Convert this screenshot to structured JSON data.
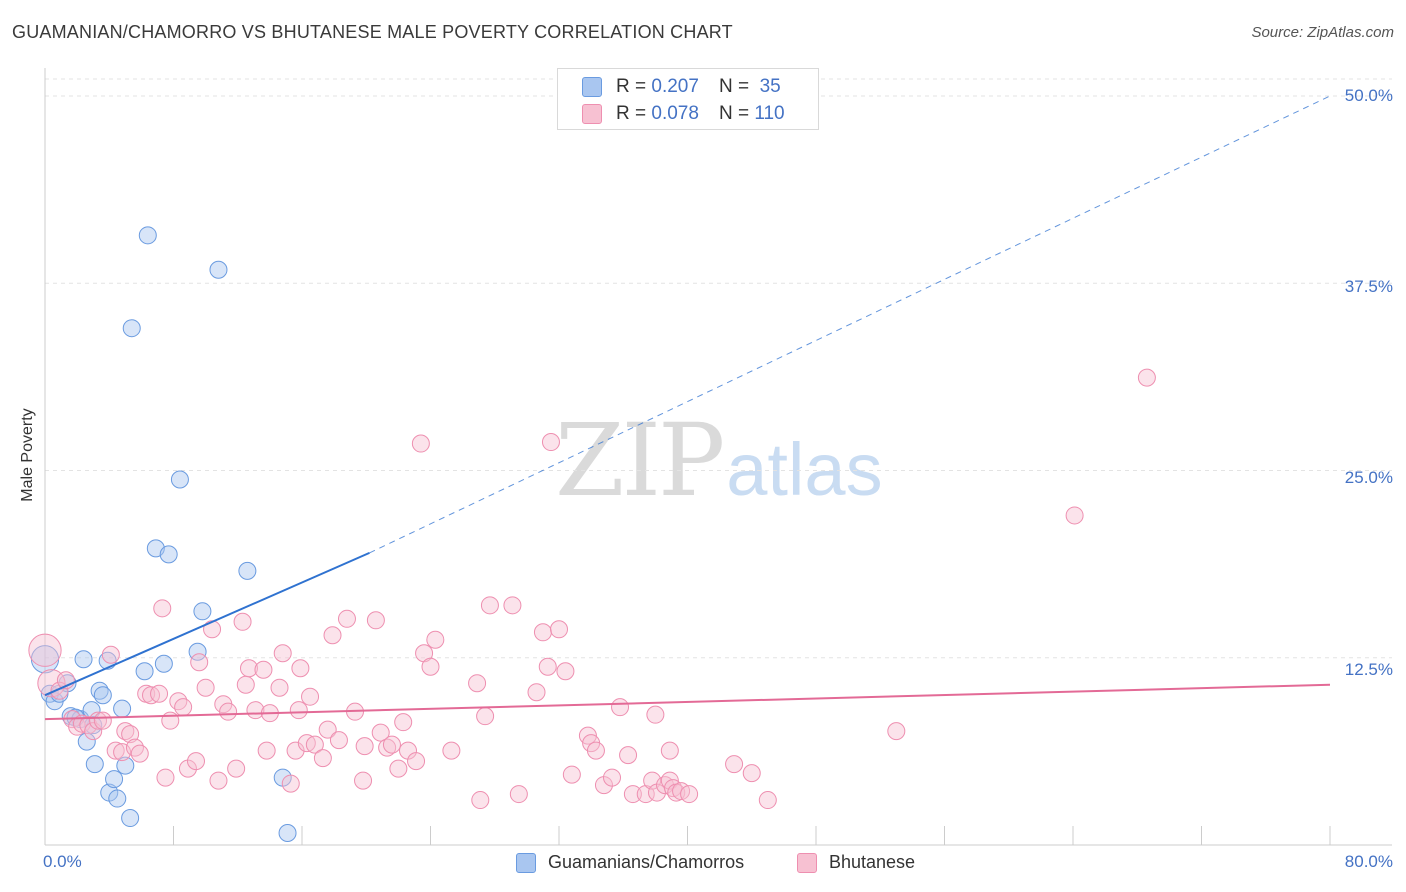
{
  "title": "GUAMANIAN/CHAMORRO VS BHUTANESE MALE POVERTY CORRELATION CHART",
  "source": "Source: ZipAtlas.com",
  "watermark": {
    "zip": "ZIP",
    "atlas": "atlas"
  },
  "legend": {
    "rows": [
      {
        "r_label": "R = ",
        "r_value": "0.207",
        "n_label": "N = ",
        "n_value": "35",
        "color": "#a9c6f0",
        "border": "#6a9be0"
      },
      {
        "r_label": "R = ",
        "r_value": "0.078",
        "n_label": "N = ",
        "n_value": "110",
        "color": "#f7c1d2",
        "border": "#ee8fb0"
      }
    ]
  },
  "bottom_legend": [
    {
      "label": "Guamanians/Chamorros",
      "color": "#a9c6f0",
      "border": "#6a9be0"
    },
    {
      "label": "Bhutanese",
      "color": "#f7c1d2",
      "border": "#ee8fb0"
    }
  ],
  "chart_data": {
    "type": "scatter",
    "title": "GUAMANIAN/CHAMORRO VS BHUTANESE MALE POVERTY CORRELATION CHART",
    "xlabel": "",
    "ylabel": "Male Poverty",
    "xlim": [
      0,
      80
    ],
    "ylim": [
      0,
      50
    ],
    "x_tick_labels": [
      "0.0%",
      "80.0%"
    ],
    "y_ticks": [
      12.5,
      25.0,
      37.5,
      50.0
    ],
    "y_tick_labels": [
      "12.5%",
      "25.0%",
      "37.5%",
      "50.0%"
    ],
    "grid": true,
    "series": [
      {
        "name": "Guamanians/Chamorros",
        "color": "#6a9be0",
        "fill": "#a9c6f0",
        "R": 0.207,
        "N": 35,
        "trend": {
          "x0": 0,
          "y0": 10.0,
          "x1": 20.2,
          "y1": 19.5,
          "x_dash_end": 80,
          "y_dash_end": 50.0,
          "color": "#2f72d0"
        },
        "points": [
          [
            0.0,
            12.4,
            1.6
          ],
          [
            0.3,
            10.1,
            1.0
          ],
          [
            0.6,
            9.6,
            1.0
          ],
          [
            0.9,
            10.1,
            1.0
          ],
          [
            1.4,
            10.8,
            1.0
          ],
          [
            1.6,
            8.6,
            1.0
          ],
          [
            2.2,
            8.4,
            1.0
          ],
          [
            2.4,
            12.4,
            1.0
          ],
          [
            2.6,
            6.9,
            1.0
          ],
          [
            2.9,
            9.0,
            1.0
          ],
          [
            3.1,
            5.4,
            1.0
          ],
          [
            3.4,
            10.3,
            1.0
          ],
          [
            3.6,
            10.0,
            1.0
          ],
          [
            3.9,
            12.3,
            1.0
          ],
          [
            4.0,
            3.5,
            1.0
          ],
          [
            4.3,
            4.4,
            1.0
          ],
          [
            4.5,
            3.1,
            1.0
          ],
          [
            4.8,
            9.1,
            1.0
          ],
          [
            5.0,
            5.3,
            1.0
          ],
          [
            5.3,
            1.8,
            1.0
          ],
          [
            5.4,
            34.5,
            1.0
          ],
          [
            6.2,
            11.6,
            1.0
          ],
          [
            6.4,
            40.7,
            1.0
          ],
          [
            6.9,
            19.8,
            1.0
          ],
          [
            7.4,
            12.1,
            1.0
          ],
          [
            7.7,
            19.4,
            1.0
          ],
          [
            8.4,
            24.4,
            1.0
          ],
          [
            9.8,
            15.6,
            1.0
          ],
          [
            9.5,
            12.9,
            1.0
          ],
          [
            10.8,
            38.4,
            1.0
          ],
          [
            12.6,
            18.3,
            1.0
          ],
          [
            14.8,
            4.5,
            1.0
          ],
          [
            15.1,
            0.8,
            1.0
          ],
          [
            3.0,
            8.0,
            1.0
          ],
          [
            1.9,
            8.5,
            1.0
          ]
        ]
      },
      {
        "name": "Bhutanese",
        "color": "#ee8fb0",
        "fill": "#f7c1d2",
        "R": 0.078,
        "N": 110,
        "trend": {
          "x0": 0,
          "y0": 8.4,
          "x1": 80,
          "y1": 10.7,
          "color": "#e36a96"
        },
        "points": [
          [
            0.0,
            13.0,
            1.9
          ],
          [
            0.4,
            10.8,
            1.6
          ],
          [
            0.9,
            10.3,
            1.0
          ],
          [
            1.3,
            11.0,
            1.0
          ],
          [
            1.7,
            8.4,
            1.0
          ],
          [
            2.0,
            7.9,
            1.0
          ],
          [
            2.3,
            8.1,
            1.0
          ],
          [
            2.7,
            8.0,
            1.0
          ],
          [
            3.0,
            7.6,
            1.0
          ],
          [
            3.3,
            8.3,
            1.0
          ],
          [
            3.6,
            8.3,
            1.0
          ],
          [
            4.1,
            12.7,
            1.0
          ],
          [
            4.4,
            6.3,
            1.0
          ],
          [
            4.8,
            6.2,
            1.0
          ],
          [
            5.0,
            7.6,
            1.0
          ],
          [
            5.3,
            7.4,
            1.0
          ],
          [
            5.6,
            6.5,
            1.0
          ],
          [
            5.9,
            6.1,
            1.0
          ],
          [
            6.3,
            10.1,
            1.0
          ],
          [
            6.6,
            10.0,
            1.0
          ],
          [
            7.1,
            10.1,
            1.0
          ],
          [
            7.5,
            4.5,
            1.0
          ],
          [
            7.3,
            15.8,
            1.0
          ],
          [
            7.8,
            8.3,
            1.0
          ],
          [
            8.3,
            9.6,
            1.0
          ],
          [
            8.6,
            9.2,
            1.0
          ],
          [
            8.9,
            5.1,
            1.0
          ],
          [
            9.4,
            5.6,
            1.0
          ],
          [
            9.6,
            12.2,
            1.0
          ],
          [
            10.0,
            10.5,
            1.0
          ],
          [
            10.4,
            14.4,
            1.0
          ],
          [
            10.8,
            4.3,
            1.0
          ],
          [
            11.1,
            9.4,
            1.0
          ],
          [
            11.4,
            8.9,
            1.0
          ],
          [
            11.9,
            5.1,
            1.0
          ],
          [
            12.3,
            14.9,
            1.0
          ],
          [
            12.5,
            10.7,
            1.0
          ],
          [
            12.7,
            11.8,
            1.0
          ],
          [
            13.1,
            9.0,
            1.0
          ],
          [
            13.6,
            11.7,
            1.0
          ],
          [
            13.8,
            6.3,
            1.0
          ],
          [
            14.0,
            8.8,
            1.0
          ],
          [
            14.6,
            10.5,
            1.0
          ],
          [
            14.8,
            12.8,
            1.0
          ],
          [
            15.3,
            4.1,
            1.0
          ],
          [
            15.6,
            6.3,
            1.0
          ],
          [
            15.9,
            11.8,
            1.0
          ],
          [
            16.3,
            6.8,
            1.0
          ],
          [
            16.8,
            6.7,
            1.0
          ],
          [
            16.5,
            9.9,
            1.0
          ],
          [
            17.3,
            5.8,
            1.0
          ],
          [
            17.6,
            7.7,
            1.0
          ],
          [
            17.9,
            14.0,
            1.0
          ],
          [
            18.3,
            7.0,
            1.0
          ],
          [
            18.8,
            15.1,
            1.0
          ],
          [
            19.3,
            8.9,
            1.0
          ],
          [
            19.8,
            4.3,
            1.0
          ],
          [
            19.9,
            6.6,
            1.0
          ],
          [
            20.6,
            15.0,
            1.0
          ],
          [
            20.9,
            7.5,
            1.0
          ],
          [
            21.3,
            6.5,
            1.0
          ],
          [
            21.6,
            6.7,
            1.0
          ],
          [
            22.0,
            5.1,
            1.0
          ],
          [
            22.3,
            8.2,
            1.0
          ],
          [
            22.6,
            6.3,
            1.0
          ],
          [
            23.1,
            5.6,
            1.0
          ],
          [
            23.4,
            26.8,
            1.0
          ],
          [
            23.6,
            12.8,
            1.0
          ],
          [
            24.0,
            11.9,
            1.0
          ],
          [
            24.3,
            13.7,
            1.0
          ],
          [
            25.3,
            6.3,
            1.0
          ],
          [
            26.9,
            10.8,
            1.0
          ],
          [
            27.1,
            3.0,
            1.0
          ],
          [
            27.4,
            8.6,
            1.0
          ],
          [
            27.7,
            16.0,
            1.0
          ],
          [
            29.1,
            16.0,
            1.0
          ],
          [
            29.5,
            3.4,
            1.0
          ],
          [
            30.6,
            10.2,
            1.0
          ],
          [
            31.0,
            14.2,
            1.0
          ],
          [
            31.3,
            11.9,
            1.0
          ],
          [
            31.5,
            26.9,
            1.0
          ],
          [
            32.0,
            14.4,
            1.0
          ],
          [
            32.4,
            11.6,
            1.0
          ],
          [
            32.8,
            4.7,
            1.0
          ],
          [
            33.8,
            7.3,
            1.0
          ],
          [
            34.0,
            6.8,
            1.0
          ],
          [
            34.3,
            6.3,
            1.0
          ],
          [
            34.8,
            4.0,
            1.0
          ],
          [
            35.3,
            4.5,
            1.0
          ],
          [
            35.8,
            9.2,
            1.0
          ],
          [
            36.3,
            6.0,
            1.0
          ],
          [
            36.6,
            3.4,
            1.0
          ],
          [
            37.4,
            3.4,
            1.0
          ],
          [
            37.8,
            4.3,
            1.0
          ],
          [
            38.1,
            3.5,
            1.0
          ],
          [
            38.6,
            4.0,
            1.0
          ],
          [
            38.9,
            4.3,
            1.0
          ],
          [
            39.1,
            3.8,
            1.0
          ],
          [
            39.3,
            3.5,
            1.0
          ],
          [
            39.6,
            3.6,
            1.0
          ],
          [
            40.1,
            3.4,
            1.0
          ],
          [
            38.0,
            8.7,
            1.0
          ],
          [
            38.9,
            6.3,
            1.0
          ],
          [
            42.9,
            5.4,
            1.0
          ],
          [
            44.0,
            4.8,
            1.0
          ],
          [
            45.0,
            3.0,
            1.0
          ],
          [
            53.0,
            7.6,
            1.0
          ],
          [
            64.1,
            22.0,
            1.0
          ],
          [
            68.6,
            31.2,
            1.0
          ],
          [
            15.8,
            9.0,
            1.0
          ]
        ]
      }
    ]
  }
}
